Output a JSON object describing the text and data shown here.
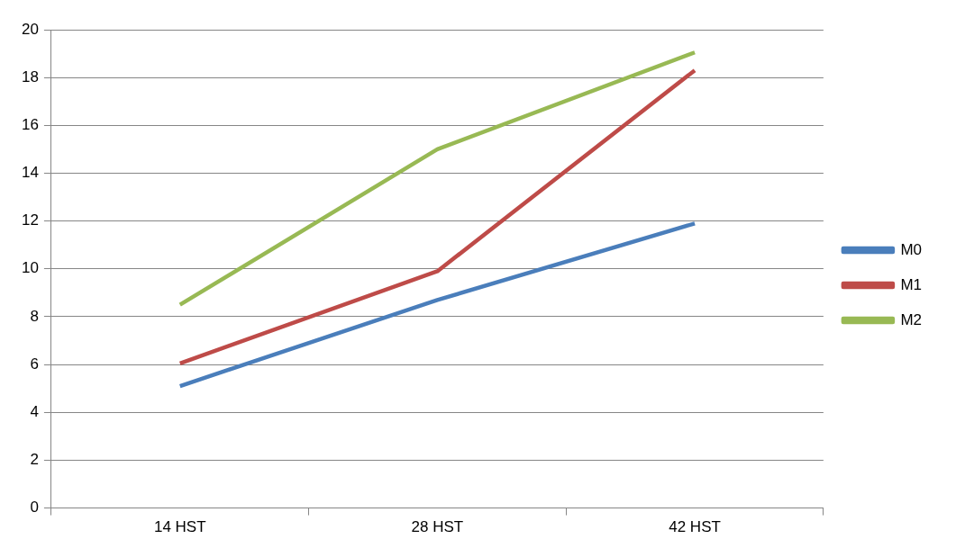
{
  "chart_data": {
    "type": "line",
    "categories": [
      "14 HST",
      "28 HST",
      "42 HST"
    ],
    "series": [
      {
        "name": "M0",
        "color": "#4a7ebb",
        "values": [
          5.1,
          8.7,
          11.9
        ]
      },
      {
        "name": "M1",
        "color": "#be4b48",
        "values": [
          6.05,
          9.9,
          18.3
        ]
      },
      {
        "name": "M2",
        "color": "#98b954",
        "values": [
          8.5,
          15.0,
          19.05
        ]
      }
    ],
    "ylim": [
      0,
      20
    ],
    "yticks": [
      0,
      2,
      4,
      6,
      8,
      10,
      12,
      14,
      16,
      18,
      20
    ],
    "grid": "y",
    "legend": "right",
    "marker": "none",
    "line_style": "solid"
  }
}
